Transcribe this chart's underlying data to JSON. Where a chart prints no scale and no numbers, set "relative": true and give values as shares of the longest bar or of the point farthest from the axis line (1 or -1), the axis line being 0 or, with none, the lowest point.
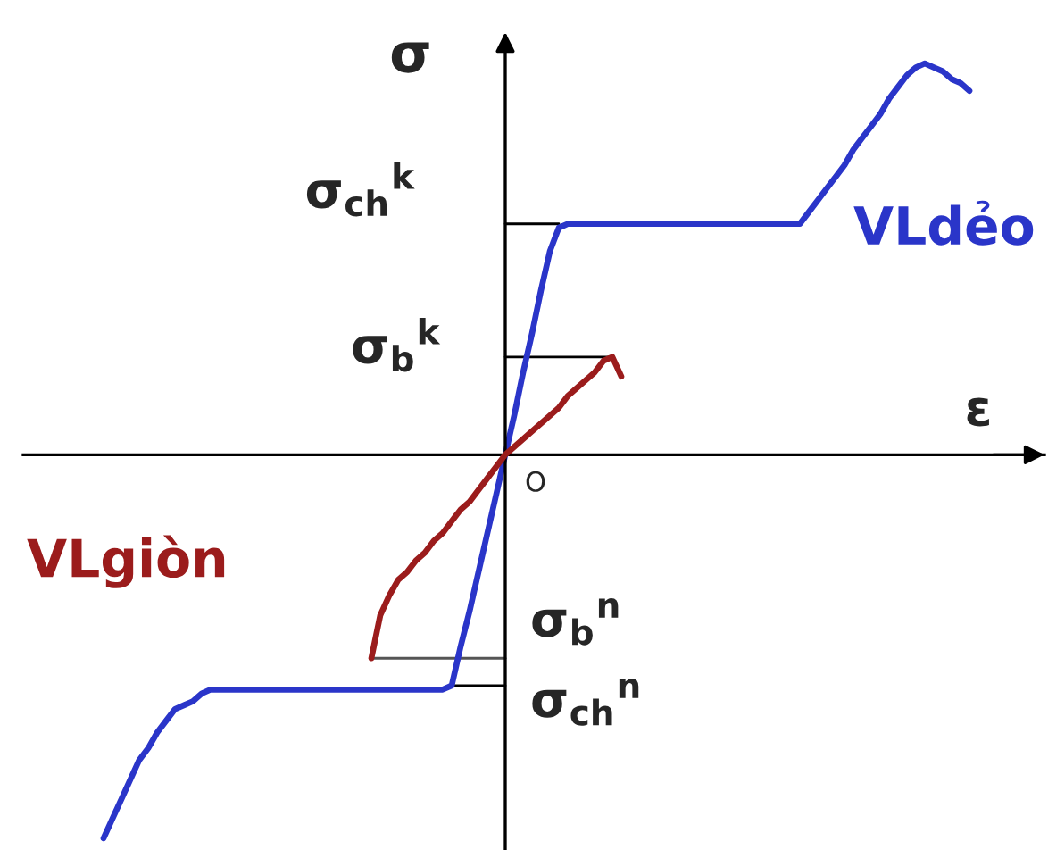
{
  "chart_data": {
    "type": "line",
    "relative": true,
    "xlabel": "ε",
    "ylabel": "σ",
    "line_style": "solid",
    "categories": [
      null,
      null,
      null,
      null,
      null,
      null,
      null,
      null,
      null,
      null,
      null,
      null,
      null,
      null,
      null,
      null,
      null,
      null,
      null,
      null,
      null,
      null,
      null,
      null,
      null,
      null,
      null,
      null,
      null,
      null,
      null,
      null,
      null,
      null,
      null,
      null,
      null,
      null,
      null,
      null,
      null,
      null,
      null,
      null,
      null,
      null,
      null,
      null,
      null,
      null,
      null,
      null,
      null,
      null,
      null,
      null,
      null,
      null,
      null,
      null,
      null,
      null,
      null,
      null,
      null,
      null,
      null,
      null,
      null,
      null,
      null,
      null,
      null,
      null,
      null,
      null,
      null,
      null,
      null,
      null,
      null,
      null,
      null,
      null,
      null,
      null,
      null,
      null,
      null,
      null,
      null,
      null,
      null,
      null,
      null,
      null,
      null,
      null
    ],
    "series": [
      {
        "name": "VLdẻo",
        "color": "#2a35c9",
        "values": [
          -0.98,
          -0.93,
          -0.88,
          -0.83,
          -0.78,
          -0.75,
          -0.71,
          -0.68,
          -0.65,
          -0.64,
          -0.63,
          -0.61,
          -0.6,
          -0.6,
          -0.6,
          -0.6,
          -0.6,
          -0.6,
          -0.6,
          -0.6,
          -0.6,
          -0.6,
          -0.6,
          -0.6,
          -0.6,
          -0.6,
          -0.6,
          -0.6,
          -0.6,
          -0.6,
          -0.6,
          -0.6,
          -0.6,
          -0.6,
          -0.6,
          -0.6,
          -0.6,
          -0.6,
          -0.6,
          -0.59,
          -0.49,
          -0.4,
          -0.3,
          -0.2,
          -0.1,
          0,
          0.1,
          0.21,
          0.31,
          0.42,
          0.52,
          0.58,
          0.59,
          0.59,
          0.59,
          0.59,
          0.59,
          0.59,
          0.59,
          0.59,
          0.59,
          0.59,
          0.59,
          0.59,
          0.59,
          0.59,
          0.59,
          0.59,
          0.59,
          0.59,
          0.59,
          0.59,
          0.59,
          0.59,
          0.59,
          0.59,
          0.59,
          0.59,
          0.59,
          0.62,
          0.65,
          0.68,
          0.71,
          0.74,
          0.78,
          0.81,
          0.84,
          0.87,
          0.91,
          0.94,
          0.97,
          0.99,
          1.0,
          0.99,
          0.98,
          0.96,
          0.95,
          0.93
        ]
      },
      {
        "name": "VLgiòn",
        "color": "#9b1c1c",
        "values": [
          null,
          null,
          null,
          null,
          null,
          null,
          null,
          null,
          null,
          null,
          null,
          null,
          null,
          null,
          null,
          null,
          null,
          null,
          null,
          null,
          null,
          null,
          null,
          null,
          null,
          null,
          null,
          null,
          null,
          null,
          -0.52,
          -0.41,
          -0.36,
          -0.32,
          -0.3,
          -0.27,
          -0.25,
          -0.22,
          -0.2,
          -0.17,
          -0.14,
          -0.12,
          -0.09,
          -0.06,
          -0.03,
          0,
          0.02,
          0.04,
          0.06,
          0.08,
          0.1,
          0.12,
          0.15,
          0.17,
          0.19,
          0.21,
          0.24,
          0.25,
          0.2,
          null,
          null,
          null,
          null,
          null,
          null,
          null,
          null,
          null,
          null,
          null,
          null,
          null,
          null,
          null,
          null,
          null,
          null,
          null,
          null,
          null,
          null,
          null,
          null,
          null,
          null,
          null,
          null,
          null,
          null,
          null,
          null,
          null,
          null,
          null,
          null,
          null,
          null,
          null
        ]
      },
      {
        "color": "#000000",
        "values": [
          null,
          null,
          null,
          null,
          null,
          null,
          null,
          null,
          null,
          null,
          null,
          null,
          null,
          null,
          null,
          null,
          null,
          null,
          null,
          null,
          null,
          null,
          null,
          null,
          null,
          null,
          null,
          null,
          null,
          null,
          null,
          null,
          null,
          null,
          null,
          null,
          null,
          null,
          null,
          null,
          null,
          null,
          null,
          null,
          null,
          0.59,
          0.59,
          0.59,
          0.59,
          0.59,
          0.59,
          0.59,
          null,
          null,
          null,
          null,
          null,
          null,
          null,
          null,
          null,
          null,
          null,
          null,
          null,
          null,
          null,
          null,
          null,
          null,
          null,
          null,
          null,
          null,
          null,
          null,
          null,
          null,
          null,
          null,
          null,
          null,
          null,
          null,
          null,
          null,
          null,
          null,
          null,
          null,
          null,
          null,
          null,
          null,
          null,
          null,
          null,
          null
        ]
      },
      {
        "color": "#000000",
        "values": [
          null,
          null,
          null,
          null,
          null,
          null,
          null,
          null,
          null,
          null,
          null,
          null,
          null,
          null,
          null,
          null,
          null,
          null,
          null,
          null,
          null,
          null,
          null,
          null,
          null,
          null,
          null,
          null,
          null,
          null,
          null,
          null,
          null,
          null,
          null,
          null,
          null,
          null,
          null,
          null,
          null,
          null,
          null,
          null,
          null,
          0.25,
          0.25,
          0.25,
          0.25,
          0.25,
          0.25,
          0.25,
          0.25,
          0.25,
          0.25,
          0.25,
          0.25,
          0.25,
          null,
          null,
          null,
          null,
          null,
          null,
          null,
          null,
          null,
          null,
          null,
          null,
          null,
          null,
          null,
          null,
          null,
          null,
          null,
          null,
          null,
          null,
          null,
          null,
          null,
          null,
          null,
          null,
          null,
          null,
          null,
          null,
          null,
          null,
          null,
          null,
          null,
          null,
          null,
          null
        ]
      },
      {
        "color": "#555555",
        "values": [
          null,
          null,
          null,
          null,
          null,
          null,
          null,
          null,
          null,
          null,
          null,
          null,
          null,
          null,
          null,
          null,
          null,
          null,
          null,
          null,
          null,
          null,
          null,
          null,
          null,
          null,
          null,
          null,
          null,
          null,
          -0.52,
          -0.52,
          -0.52,
          -0.52,
          -0.52,
          -0.52,
          -0.52,
          -0.52,
          -0.52,
          -0.52,
          -0.52,
          -0.52,
          -0.52,
          -0.52,
          -0.52,
          -0.52,
          null,
          null,
          null,
          null,
          null,
          null,
          null,
          null,
          null,
          null,
          null,
          null,
          null,
          null,
          null,
          null,
          null,
          null,
          null,
          null,
          null,
          null,
          null,
          null,
          null,
          null,
          null,
          null,
          null,
          null,
          null,
          null,
          null,
          null,
          null,
          null,
          null,
          null,
          null,
          null,
          null,
          null,
          null,
          null,
          null,
          null,
          null,
          null,
          null,
          null,
          null,
          null
        ]
      },
      {
        "color": "#000000",
        "values": [
          null,
          null,
          null,
          null,
          null,
          null,
          null,
          null,
          null,
          null,
          null,
          null,
          null,
          null,
          null,
          null,
          null,
          null,
          null,
          null,
          null,
          null,
          null,
          null,
          null,
          null,
          null,
          null,
          null,
          null,
          null,
          null,
          null,
          null,
          null,
          null,
          null,
          null,
          null,
          -0.59,
          -0.59,
          -0.59,
          -0.59,
          -0.59,
          -0.59,
          -0.59,
          null,
          null,
          null,
          null,
          null,
          null,
          null,
          null,
          null,
          null,
          null,
          null,
          null,
          null,
          null,
          null,
          null,
          null,
          null,
          null,
          null,
          null,
          null,
          null,
          null,
          null,
          null,
          null,
          null,
          null,
          null,
          null,
          null,
          null,
          null,
          null,
          null,
          null,
          null,
          null,
          null,
          null,
          null,
          null,
          null,
          null,
          null,
          null,
          null,
          null,
          null,
          null
        ]
      }
    ],
    "annotations": [
      "O",
      "σ$_{ch}$$^{k}$",
      "σ$_{b}$$^{k}$",
      "σ$_{b}$$^{n}$",
      "σ$_{ch}$$^{n}$"
    ]
  }
}
